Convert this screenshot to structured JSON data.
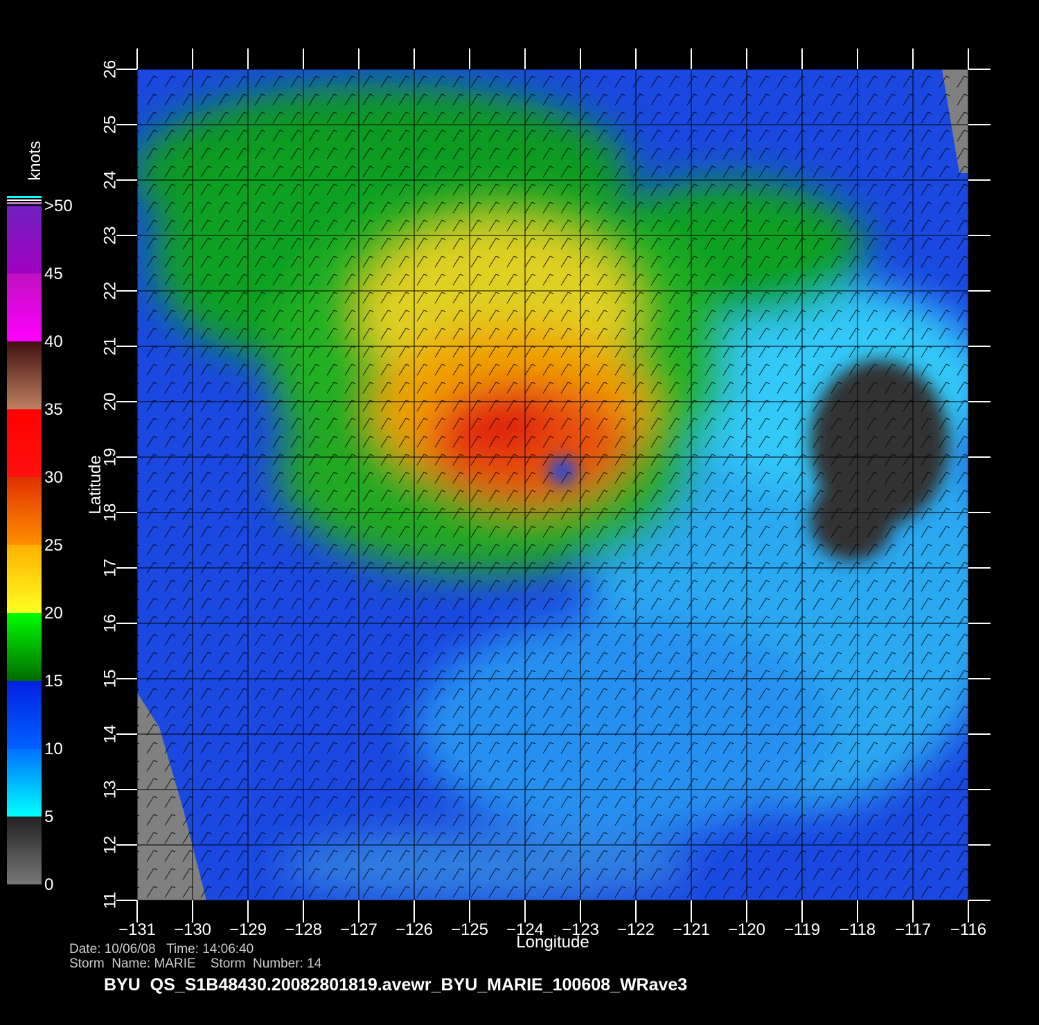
{
  "map": {
    "xlim": [
      -131,
      -116
    ],
    "ylim": [
      11,
      26
    ],
    "xticks": [
      {
        "value": -131,
        "label": "−131"
      },
      {
        "value": -130,
        "label": "−130"
      },
      {
        "value": -129,
        "label": "−129"
      },
      {
        "value": -128,
        "label": "−128"
      },
      {
        "value": -127,
        "label": "−127"
      },
      {
        "value": -126,
        "label": "−126"
      },
      {
        "value": -125,
        "label": "−125"
      },
      {
        "value": -124,
        "label": "−124"
      },
      {
        "value": -123,
        "label": "−123"
      },
      {
        "value": -122,
        "label": "−122"
      },
      {
        "value": -121,
        "label": "−121"
      },
      {
        "value": -120,
        "label": "−120"
      },
      {
        "value": -119,
        "label": "−119"
      },
      {
        "value": -118,
        "label": "−118"
      },
      {
        "value": -117,
        "label": "−117"
      },
      {
        "value": -116,
        "label": "−116"
      }
    ],
    "yticks": [
      11,
      12,
      13,
      14,
      15,
      16,
      17,
      18,
      19,
      20,
      21,
      22,
      23,
      24,
      25,
      26
    ],
    "xlabel": "Longitude",
    "ylabel": "Latitude",
    "grid": true
  },
  "colorbar": {
    "unit": "knots",
    "ticks": [
      0,
      5,
      10,
      15,
      20,
      25,
      30,
      35,
      40,
      45,
      {
        "value": 50,
        "label": ">50"
      }
    ]
  },
  "footer": {
    "line1": "Date: 10/06/08   Time: 14:06:40",
    "line2": "Storm  Name: MARIE    Storm  Number: 14",
    "title": "BYU  QS_S1B48430.20082801819.avewr_BYU_MARIE_100608_WRave3"
  }
}
